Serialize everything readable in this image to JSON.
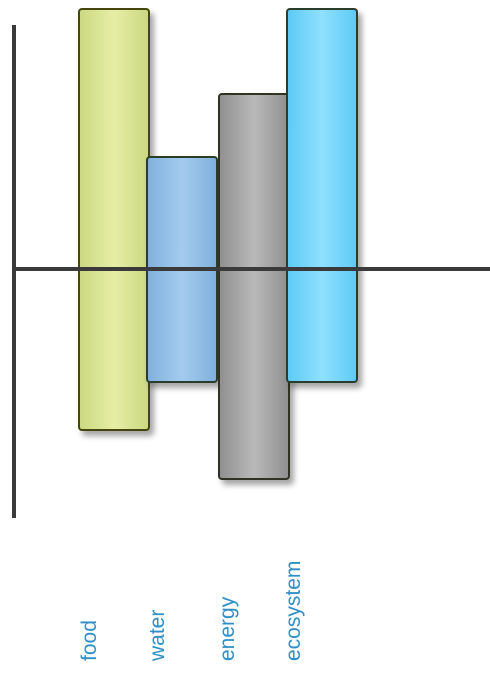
{
  "chart_data": {
    "type": "bar",
    "categories": [
      "food",
      "water",
      "energy",
      "ecosystem"
    ],
    "colors": {
      "food": "#dfe89a",
      "water": "#96c3e8",
      "energy": "#aaaaaa",
      "ecosystem": "#7dd9fb",
      "axis": "#3a3a3a"
    }
  }
}
